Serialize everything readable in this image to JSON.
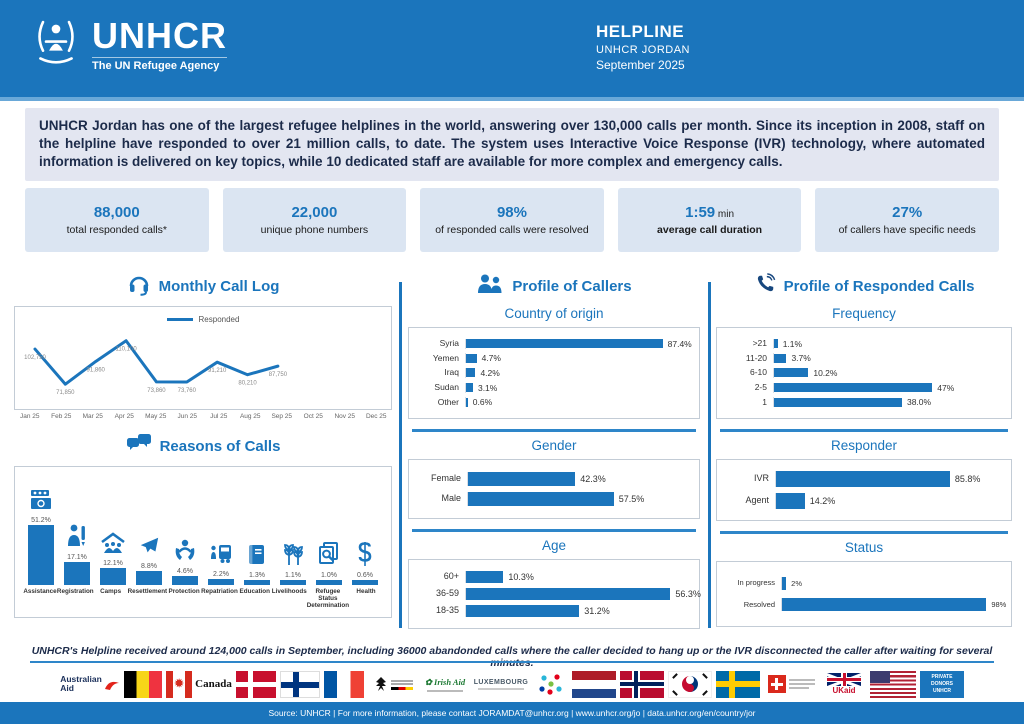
{
  "header": {
    "org": "UNHCR",
    "tagline": "The UN Refugee Agency",
    "title": "HELPLINE",
    "subtitle": "UNHCR JORDAN",
    "date": "September 2025"
  },
  "intro": {
    "text": "UNHCR Jordan has one of the largest refugee helplines in the world, answering over 130,000 calls per month. Since its inception in 2008, staff on the helpline have responded to over 21 million calls, to date. The system uses Interactive Voice Response (IVR) technology, where automated information is delivered on key topics, while 10 dedicated staff are available for more complex and emergency calls."
  },
  "stats": [
    {
      "value": "88,000",
      "unit": "",
      "label": "total responded calls*"
    },
    {
      "value": "22,000",
      "unit": "",
      "label": "unique phone numbers"
    },
    {
      "value": "98%",
      "unit": "",
      "label": "of responded calls were resolved"
    },
    {
      "value": "1:59",
      "unit": " min",
      "label": "average call duration"
    },
    {
      "value": "27%",
      "unit": "",
      "label": "of callers have specific needs"
    }
  ],
  "sections": {
    "monthly": {
      "title": "Monthly Call Log",
      "legend": "Responded",
      "icon": "headset-icon"
    },
    "reasons": {
      "title": "Reasons of Calls",
      "icon": "chat-bubbles-icon"
    },
    "callers": {
      "title": "Profile of Callers",
      "icon": "people-icon",
      "country": "Country of origin",
      "gender": "Gender",
      "age": "Age"
    },
    "responded": {
      "title": "Profile of Responded Calls",
      "icon": "phone-icon",
      "frequency": "Frequency",
      "responder": "Responder",
      "status": "Status"
    }
  },
  "chart_data": [
    {
      "id": "monthly_call_log",
      "type": "line",
      "title": "Monthly Call Log",
      "x": [
        "Jan 25",
        "Feb 25",
        "Mar 25",
        "Apr 25",
        "May 25",
        "Jun 25",
        "Jul 25",
        "Aug 25",
        "Sep 25",
        "Oct 25",
        "Nov 25",
        "Dec 25"
      ],
      "series": [
        {
          "name": "Responded",
          "values": [
            102750,
            71850,
            91860,
            110100,
            73860,
            73760,
            91210,
            80210,
            87750,
            null,
            null,
            null
          ],
          "point_labels": [
            "102,750",
            "71,850",
            "91,860",
            "110,100",
            "73,860",
            "73,760",
            "91,210",
            "80,210",
            "87,750"
          ]
        }
      ],
      "ylim": [
        65000,
        116000
      ],
      "grid": false,
      "legend_position": "top"
    },
    {
      "id": "reasons_of_calls",
      "type": "bar",
      "title": "Reasons of Calls",
      "categories": [
        "Assistance",
        "Registration",
        "Camps",
        "Resettlement",
        "Protection",
        "Repatriation",
        "Education",
        "Livelihoods",
        "Refugee Status Determination",
        "Health"
      ],
      "values": [
        51.2,
        17.1,
        12.1,
        8.8,
        4.6,
        2.2,
        1.3,
        1.1,
        1.0,
        0.6
      ],
      "labels": [
        "51.2%",
        "17.1%",
        "12.1%",
        "8.8%",
        "4.6%",
        "2.2%",
        "1.3%",
        "1.1%",
        "1.0%",
        "0.6%"
      ],
      "icons": [
        "money-icon",
        "registration-icon",
        "camp-icon",
        "plane-icon",
        "protection-icon",
        "repatriation-icon",
        "education-icon",
        "livelihoods-icon",
        "rsd-icon",
        "health-icon"
      ]
    },
    {
      "id": "country_of_origin",
      "type": "barh",
      "title": "Country of origin",
      "categories": [
        "Syria",
        "Yemen",
        "Iraq",
        "Sudan",
        "Other"
      ],
      "values": [
        87.4,
        4.7,
        4.2,
        3.1,
        0.6
      ],
      "labels": [
        "87.4%",
        "4.7%",
        "4.2%",
        "3.1%",
        "0.6%"
      ],
      "xmax": 100
    },
    {
      "id": "gender",
      "type": "barh",
      "title": "Gender",
      "categories": [
        "Female",
        "Male"
      ],
      "values": [
        42.3,
        57.5
      ],
      "labels": [
        "42.3%",
        "57.5%"
      ],
      "xmax": 88
    },
    {
      "id": "age",
      "type": "barh",
      "title": "Age",
      "categories": [
        "60+",
        "36-59",
        "18-35"
      ],
      "values": [
        10.3,
        56.3,
        31.2
      ],
      "labels": [
        "10.3%",
        "56.3%",
        "31.2%"
      ],
      "xmax": 62
    },
    {
      "id": "frequency",
      "type": "barh",
      "title": "Frequency",
      "categories": [
        ">21",
        "11-20",
        "6-10",
        "2-5",
        "1"
      ],
      "values": [
        1.1,
        3.7,
        10.2,
        47,
        38.0
      ],
      "labels": [
        "1.1%",
        "3.7%",
        "10.2%",
        "47%",
        "38.0%"
      ],
      "xmax": 68
    },
    {
      "id": "responder",
      "type": "barh",
      "title": "Responder",
      "categories": [
        "IVR",
        "Agent"
      ],
      "values": [
        85.8,
        14.2
      ],
      "labels": [
        "85.8%",
        "14.2%"
      ],
      "xmax": 112
    },
    {
      "id": "status",
      "type": "barh",
      "title": "Status",
      "categories": [
        "In progress",
        "Resolved"
      ],
      "values": [
        2,
        98
      ],
      "labels": [
        "2%",
        "98%"
      ],
      "xmax": 106
    }
  ],
  "footer": {
    "note": "UNHCR's Helpline received around 124,000 calls in September, including 36000 abandonded calls where the caller decided to hang up or the IVR disconnected the caller after waiting for several minutes.",
    "source": "Source: UNHCR | For more information, please contact JORAMDAT@unhcr.org | www.unhcr.org/jo | data.unhcr.org/en/country/jor"
  },
  "donors": [
    {
      "id": "australian-aid",
      "label": "Australian Aid"
    },
    {
      "id": "belgium",
      "label": ""
    },
    {
      "id": "canada",
      "label": "Canada"
    },
    {
      "id": "denmark",
      "label": ""
    },
    {
      "id": "finland",
      "label": ""
    },
    {
      "id": "france",
      "label": ""
    },
    {
      "id": "germany",
      "label": ""
    },
    {
      "id": "irish-aid",
      "label": "Irish Aid"
    },
    {
      "id": "luxembourg",
      "label": "LUXEMBOURG"
    },
    {
      "id": "donor-dots",
      "label": ""
    },
    {
      "id": "netherlands",
      "label": ""
    },
    {
      "id": "norway",
      "label": ""
    },
    {
      "id": "south-korea",
      "label": ""
    },
    {
      "id": "sweden",
      "label": ""
    },
    {
      "id": "switzerland",
      "label": ""
    },
    {
      "id": "uk-aid",
      "label": "UKaid"
    },
    {
      "id": "usa",
      "label": ""
    },
    {
      "id": "private-donors",
      "label": "PRIVATE DONORS UNHCR"
    }
  ],
  "colors": {
    "primary": "#1b75bc",
    "header_strip": "#69a8d8",
    "stat_box_bg": "#dbe5f2",
    "intro_bg": "#e3e6f1",
    "bar": "#1b75bc",
    "divider": "#2e86c9"
  }
}
